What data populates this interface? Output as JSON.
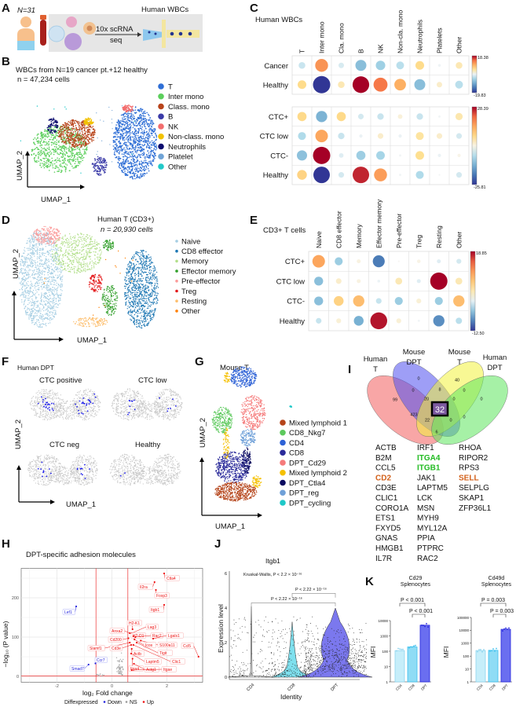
{
  "panel_labels": [
    "A",
    "B",
    "C",
    "D",
    "E",
    "F",
    "G",
    "H",
    "I",
    "J",
    "K"
  ],
  "A": {
    "n_text": "N=31",
    "method_line1": "10x  scRNA",
    "method_line2": "seq",
    "output": "Human WBCs"
  },
  "B": {
    "title": "WBCs from N=19 cancer pt.+12 healthy",
    "subtitle": "n = 47,234 cells",
    "xlabel": "UMAP_1",
    "ylabel": "UMAP_2",
    "legend": [
      {
        "name": "T",
        "color": "#2f6fd6"
      },
      {
        "name": "Inter mono",
        "color": "#5ccf5c"
      },
      {
        "name": "Class. mono",
        "color": "#b8441b"
      },
      {
        "name": "B",
        "color": "#3b3ba8"
      },
      {
        "name": "NK",
        "color": "#f26d6d"
      },
      {
        "name": "Non-class. mono",
        "color": "#f2c200"
      },
      {
        "name": "Neutrophils",
        "color": "#0a0a6e"
      },
      {
        "name": "Platelet",
        "color": "#6fa3d6"
      },
      {
        "name": "Other",
        "color": "#22c9c9"
      }
    ]
  },
  "C": {
    "title": "Human WBCs",
    "columns": [
      "T",
      "Inter mono",
      "Cla. mono",
      "B",
      "NK",
      "Non-cla. mono",
      "Neutrophils",
      "Platelets",
      "Other"
    ],
    "blocks": [
      {
        "rows": [
          "Cancer",
          "Healthy"
        ],
        "range": [
          -19.83,
          18.38
        ],
        "range_labels": [
          "18.38",
          "-19.83"
        ],
        "values": [
          [
            -3,
            11,
            -2,
            -8,
            -6,
            -4,
            5,
            -0.5,
            3
          ],
          [
            5,
            -19.83,
            3,
            18.38,
            13,
            9,
            -8,
            2,
            -4
          ]
        ]
      },
      {
        "rows": [
          "CTC+",
          "CTC low",
          "CTC-",
          "Healthy"
        ],
        "range": [
          -25.81,
          28.39
        ],
        "range_labels": [
          "28.39",
          "-25.81"
        ],
        "values": [
          [
            8,
            -12,
            8,
            -3,
            -4,
            2,
            -4,
            -0.5,
            5
          ],
          [
            -6,
            15,
            -4,
            -1,
            3,
            -1,
            6,
            3,
            -3
          ],
          [
            -10,
            28.39,
            -2,
            -8,
            -7,
            -0.5,
            7,
            -1,
            1
          ],
          [
            9,
            -25.81,
            -3,
            26,
            16,
            -0.5,
            -6,
            -0.3,
            -3
          ]
        ]
      }
    ]
  },
  "D": {
    "title": "Human T (CD3+)",
    "subtitle": "n = 20,930 cells",
    "xlabel": "UMAP_1",
    "ylabel": "UMAP_2",
    "legend": [
      {
        "name": "Naive",
        "color": "#a6cee3"
      },
      {
        "name": "CD8 effector",
        "color": "#1f78b4"
      },
      {
        "name": "Memory",
        "color": "#b2df8a"
      },
      {
        "name": "Effector memory",
        "color": "#33a02c"
      },
      {
        "name": "Pre-effector",
        "color": "#fb9a99"
      },
      {
        "name": "Treg",
        "color": "#e31a1c"
      },
      {
        "name": "Resting",
        "color": "#fdbf6f"
      },
      {
        "name": "Other",
        "color": "#ff7f00"
      }
    ]
  },
  "E": {
    "title": "CD3+ T cells",
    "columns": [
      "Naive",
      "CD8 effector",
      "Memory",
      "Effector memory",
      "Pre-effector",
      "Treg",
      "Resting",
      "Other"
    ],
    "rows": [
      "CTC+",
      "CTC low",
      "CTC-",
      "Healthy"
    ],
    "range": [
      -12.5,
      18.85
    ],
    "range_labels": [
      "18.85",
      "-12.50"
    ],
    "values": [
      [
        10,
        -4,
        1,
        -9,
        0.2,
        0.8,
        -1,
        -1.5
      ],
      [
        -5,
        2,
        1,
        -0.5,
        3,
        -1,
        18.85,
        3
      ],
      [
        -5,
        6,
        8,
        -2,
        -4,
        1.5,
        -4,
        8
      ],
      [
        -2,
        1.5,
        -6,
        18,
        1.5,
        -0.3,
        -8,
        -2.5
      ]
    ]
  },
  "F": {
    "title": "Human DPT",
    "subplots": [
      "CTC positive",
      "CTC low",
      "CTC neg",
      "Healthy"
    ],
    "xlabel": "UMAP_1",
    "ylabel": "UMAP_2",
    "highlight_color": "#2222ee",
    "background_color": "#c8c8c8"
  },
  "G": {
    "title": "Mouse T",
    "xlabel": "UMAP_1",
    "ylabel": "UMAP_2",
    "legend": [
      {
        "name": "Mixed lymphoid 1",
        "color": "#b5441a"
      },
      {
        "name": "CD8_Nkg7",
        "color": "#5dc95d"
      },
      {
        "name": "CD4",
        "color": "#2e62d6"
      },
      {
        "name": "CD8",
        "color": "#2b2b9a"
      },
      {
        "name": "DPT_Cd29",
        "color": "#f57a7a"
      },
      {
        "name": "Mixed lymphoid 2",
        "color": "#f5c000"
      },
      {
        "name": "DPT_Ctla4",
        "color": "#0a0a60"
      },
      {
        "name": "DPT_reg",
        "color": "#6fa0d8"
      },
      {
        "name": "DPT_cycling",
        "color": "#1ec8c8"
      }
    ]
  },
  "H": {
    "title": "DPT-specific adhesion molecules",
    "xlabel": "log₂ Fold change",
    "ylabel": "−log₁₀ (P value)",
    "xlim": [
      -3.3,
      3.3
    ],
    "ylim": [
      -15,
      275
    ],
    "xticks": [
      -2,
      0,
      2
    ],
    "yticks": [
      0,
      100,
      200
    ],
    "fc_threshold": 0.58,
    "p_threshold": 1.3,
    "legend_title": "Diffexpressed",
    "legend": [
      {
        "name": "Down",
        "color": "#2222dd"
      },
      {
        "name": "NS",
        "color": "#999999"
      },
      {
        "name": "Up",
        "color": "#ee1111"
      }
    ],
    "genes_up": [
      {
        "gene": "Ctla4",
        "x": 1.9,
        "y": 262
      },
      {
        "gene": "Il2ra",
        "x": 1.55,
        "y": 240
      },
      {
        "gene": "Foxp3",
        "x": 1.6,
        "y": 220
      },
      {
        "gene": "Itgb1",
        "x": 1.9,
        "y": 182
      },
      {
        "gene": "H2-K1",
        "x": 0.75,
        "y": 120
      },
      {
        "gene": "Lag3",
        "x": 0.72,
        "y": 110
      },
      {
        "gene": "Anxa2",
        "x": 0.65,
        "y": 110
      },
      {
        "gene": "H2-D1",
        "x": 0.78,
        "y": 102
      },
      {
        "gene": "Rac2",
        "x": 0.85,
        "y": 100
      },
      {
        "gene": "Lgals1",
        "x": 1.5,
        "y": 96
      },
      {
        "gene": "Cd200",
        "x": 0.6,
        "y": 97
      },
      {
        "gene": "S100a11",
        "x": 1.05,
        "y": 91
      },
      {
        "gene": "Icos",
        "x": 0.82,
        "y": 94
      },
      {
        "gene": "Slamf1",
        "x": 0.65,
        "y": 86
      },
      {
        "gene": "Cd3e",
        "x": 0.7,
        "y": 80
      },
      {
        "gene": "Tigit",
        "x": 0.9,
        "y": 86
      },
      {
        "gene": "Clic1",
        "x": 0.78,
        "y": 80
      },
      {
        "gene": "Ccl5",
        "x": 3.15,
        "y": 50
      },
      {
        "gene": "Actb",
        "x": 0.72,
        "y": 70
      },
      {
        "gene": "Laptm5",
        "x": 0.7,
        "y": 58
      },
      {
        "gene": "Itga4",
        "x": 0.75,
        "y": 45
      },
      {
        "gene": "Actg1",
        "x": 0.8,
        "y": 32
      },
      {
        "gene": "Itgae",
        "x": 0.72,
        "y": 16
      }
    ],
    "genes_down": [
      {
        "gene": "Lef1",
        "x": -1.3,
        "y": 178
      },
      {
        "gene": "Ccr7",
        "x": -0.6,
        "y": 33
      },
      {
        "gene": "Smad7",
        "x": -0.85,
        "y": 30
      }
    ]
  },
  "I": {
    "sets": [
      {
        "name_line1": "Human",
        "name_line2": "T",
        "color": "#f25c5c"
      },
      {
        "name_line1": "Mouse",
        "name_line2": "DPT",
        "color": "#4f4fee"
      },
      {
        "name_line1": "Mouse",
        "name_line2": "T",
        "color": "#f2f23c"
      },
      {
        "name_line1": "Human",
        "name_line2": "DPT",
        "color": "#5ce65c"
      }
    ],
    "counts": [
      "0",
      "40",
      "0",
      "8",
      "0",
      "99",
      "20",
      "0",
      "0",
      "423",
      "32",
      "22",
      "0",
      "0",
      "6"
    ],
    "genes": [
      [
        "ACTB",
        "B2M",
        "CCL5",
        "CD2",
        "CD3E",
        "CLIC1",
        "CORO1A",
        "ETS1",
        "FXYD5",
        "GNAS",
        "HMGB1",
        "IL7R"
      ],
      [
        "IRF1",
        "ITGA4",
        "ITGB1",
        "JAK1",
        "LAPTM5",
        "LCK",
        "MSN",
        "MYH9",
        "MYL12A",
        "PPIA",
        "PTPRC",
        "RAC2"
      ],
      [
        "RHOA",
        "RIPOR2",
        "RPS3",
        "SELL",
        "SELPLG",
        "SKAP1",
        "ZFP36L1"
      ]
    ],
    "highlight_green": [
      "ITGA4",
      "ITGB1"
    ],
    "highlight_orange": [
      "CD2",
      "SELL"
    ],
    "green": "#22bb22",
    "orange": "#d2601a"
  },
  "J": {
    "title": "Itgb1",
    "test": "Kruskal-Wallis, P < 2.2 × 10⁻¹⁶",
    "comparisons": [
      "P < 2.22 × 10⁻¹⁶",
      "P < 2.22 × 10⁻¹⁶"
    ],
    "xlabel": "Identity",
    "ylabel": "Expression level",
    "categories": [
      "CD4",
      "CD8",
      "DPT"
    ],
    "yticks": [
      0,
      2,
      4,
      6
    ],
    "ylim": [
      0,
      6
    ],
    "violin_colors": [
      "#ffffff",
      "#7fe0ee",
      "#7b78ee"
    ]
  },
  "K": {
    "charts": [
      {
        "title_line1": "Cd29",
        "title_line2": "Splenocytes",
        "ylabel": "MFI",
        "categories": [
          "CD4",
          "CD8",
          "DPT"
        ],
        "values": [
          110,
          190,
          5000
        ],
        "ylim": [
          1,
          10000
        ],
        "yticks": [
          "1",
          "10",
          "100",
          "1000",
          "10000"
        ],
        "comparisons": [
          "P < 0.001",
          "P < 0.001"
        ]
      },
      {
        "title_line1": "Cd49d",
        "title_line2": "Splenocytes",
        "ylabel": "MFI",
        "categories": [
          "CD4",
          "CD8",
          "DPT"
        ],
        "values": [
          270,
          280,
          12000
        ],
        "ylim": [
          1,
          100000
        ],
        "yticks": [
          "1",
          "10",
          "100",
          "1000",
          "10000",
          "100000"
        ],
        "comparisons": [
          "P = 0.003",
          "P = 0.003"
        ]
      }
    ],
    "bar_colors": [
      "#c6eefa",
      "#8fdcf5",
      "#6a6ef0"
    ],
    "edge_colors": [
      "#8fd4ee",
      "#3cc0ee",
      "#2222dd"
    ]
  }
}
